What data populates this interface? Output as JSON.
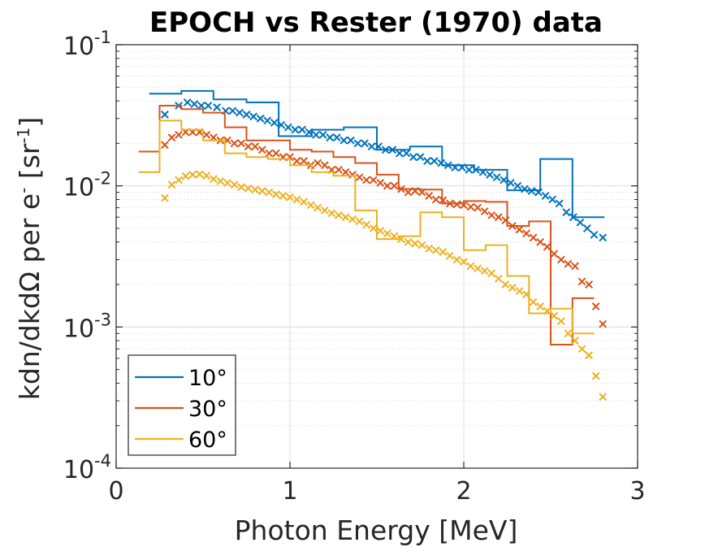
{
  "chart_data": {
    "type": "line",
    "title": "EPOCH vs Rester (1970) data",
    "xlabel": "Photon Energy [MeV]",
    "ylabel": {
      "prefix": "kdn/dkdΩ per e",
      "sup1": "-",
      "mid": " [sr",
      "sup2": "-1",
      "suffix": "]"
    },
    "xlim": [
      0,
      3
    ],
    "ylim": [
      0.0001,
      0.1
    ],
    "yscale": "log",
    "grid": true,
    "legend_position": "bottom-left",
    "xticks": [
      "0",
      "1",
      "2",
      "3"
    ],
    "yticks": [
      {
        "base": "10",
        "exp": "-4"
      },
      {
        "base": "10",
        "exp": "-3"
      },
      {
        "base": "10",
        "exp": "-2"
      },
      {
        "base": "10",
        "exp": "-1"
      }
    ],
    "series": [
      {
        "name": "10°",
        "color": "#0072BD",
        "histogram_edges": [
          0.19,
          0.375,
          0.56,
          0.75,
          0.935,
          1.125,
          1.31,
          1.5,
          1.69,
          1.875,
          2.06,
          2.25,
          2.44,
          2.625,
          2.81
        ],
        "histogram_values": [
          0.045,
          0.047,
          0.041,
          0.039,
          0.0225,
          0.025,
          0.026,
          0.018,
          0.019,
          0.014,
          0.013,
          0.0093,
          0.0155,
          0.006
        ],
        "x": [
          0.28,
          0.36,
          0.41,
          0.45,
          0.49,
          0.53,
          0.58,
          0.63,
          0.67,
          0.71,
          0.75,
          0.79,
          0.83,
          0.87,
          0.91,
          0.95,
          0.99,
          1.03,
          1.07,
          1.11,
          1.15,
          1.19,
          1.23,
          1.27,
          1.31,
          1.35,
          1.39,
          1.43,
          1.47,
          1.51,
          1.55,
          1.59,
          1.63,
          1.67,
          1.71,
          1.75,
          1.79,
          1.83,
          1.87,
          1.91,
          1.95,
          1.99,
          2.03,
          2.07,
          2.11,
          2.15,
          2.19,
          2.23,
          2.27,
          2.31,
          2.35,
          2.39,
          2.43,
          2.47,
          2.51,
          2.55,
          2.59,
          2.63,
          2.67,
          2.71,
          2.75,
          2.8
        ],
        "y": [
          0.032,
          0.037,
          0.039,
          0.038,
          0.037,
          0.037,
          0.036,
          0.034,
          0.034,
          0.033,
          0.032,
          0.031,
          0.03,
          0.029,
          0.028,
          0.027,
          0.026,
          0.025,
          0.025,
          0.024,
          0.023,
          0.023,
          0.022,
          0.022,
          0.021,
          0.021,
          0.02,
          0.02,
          0.019,
          0.019,
          0.018,
          0.018,
          0.017,
          0.017,
          0.016,
          0.016,
          0.015,
          0.015,
          0.0145,
          0.014,
          0.0135,
          0.0135,
          0.013,
          0.013,
          0.0125,
          0.012,
          0.0115,
          0.011,
          0.0105,
          0.01,
          0.0095,
          0.0092,
          0.009,
          0.0085,
          0.008,
          0.0075,
          0.0065,
          0.006,
          0.0055,
          0.005,
          0.0045,
          0.0043
        ]
      },
      {
        "name": "30°",
        "color": "#D95319",
        "histogram_edges": [
          0.13,
          0.25,
          0.375,
          0.5,
          0.625,
          0.75,
          0.875,
          1.0,
          1.125,
          1.25,
          1.375,
          1.5,
          1.625,
          1.75,
          1.875,
          2.0,
          2.125,
          2.25,
          2.375,
          2.5,
          2.625,
          2.75
        ],
        "histogram_values": [
          0.0175,
          0.037,
          0.035,
          0.033,
          0.026,
          0.021,
          0.021,
          0.018,
          0.0175,
          0.016,
          0.0145,
          0.012,
          0.0095,
          0.0094,
          0.0075,
          0.0078,
          0.0077,
          0.0052,
          0.0056,
          0.00075,
          0.0016
        ],
        "x": [
          0.28,
          0.32,
          0.36,
          0.4,
          0.44,
          0.48,
          0.52,
          0.56,
          0.6,
          0.64,
          0.68,
          0.72,
          0.76,
          0.8,
          0.84,
          0.88,
          0.92,
          0.96,
          1.0,
          1.04,
          1.08,
          1.12,
          1.16,
          1.2,
          1.24,
          1.28,
          1.32,
          1.36,
          1.4,
          1.44,
          1.48,
          1.52,
          1.56,
          1.6,
          1.64,
          1.68,
          1.72,
          1.76,
          1.8,
          1.84,
          1.88,
          1.92,
          1.96,
          2.0,
          2.04,
          2.08,
          2.12,
          2.16,
          2.2,
          2.24,
          2.28,
          2.32,
          2.36,
          2.4,
          2.44,
          2.48,
          2.52,
          2.56,
          2.6,
          2.64,
          2.68,
          2.72,
          2.76,
          2.8
        ],
        "y": [
          0.0195,
          0.022,
          0.023,
          0.024,
          0.024,
          0.024,
          0.023,
          0.022,
          0.021,
          0.021,
          0.02,
          0.02,
          0.019,
          0.019,
          0.018,
          0.017,
          0.017,
          0.016,
          0.016,
          0.015,
          0.015,
          0.014,
          0.0145,
          0.014,
          0.013,
          0.013,
          0.0125,
          0.012,
          0.0115,
          0.011,
          0.011,
          0.0105,
          0.01,
          0.01,
          0.0095,
          0.009,
          0.0092,
          0.009,
          0.0085,
          0.008,
          0.0079,
          0.0075,
          0.0074,
          0.0073,
          0.0071,
          0.007,
          0.0066,
          0.0062,
          0.006,
          0.0057,
          0.0052,
          0.0049,
          0.0046,
          0.0043,
          0.004,
          0.0037,
          0.0033,
          0.003,
          0.0028,
          0.0027,
          0.0021,
          0.002,
          0.0014,
          0.00105
        ]
      },
      {
        "name": "60°",
        "color": "#EDB120",
        "histogram_edges": [
          0.13,
          0.25,
          0.375,
          0.5,
          0.625,
          0.75,
          0.875,
          1.0,
          1.125,
          1.25,
          1.375,
          1.5,
          1.625,
          1.75,
          1.875,
          2.0,
          2.125,
          2.25,
          2.375,
          2.5,
          2.625,
          2.75
        ],
        "histogram_values": [
          0.0125,
          0.029,
          0.025,
          0.021,
          0.017,
          0.016,
          0.0155,
          0.014,
          0.0125,
          0.0118,
          0.0067,
          0.0042,
          0.0044,
          0.0065,
          0.006,
          0.0035,
          0.0038,
          0.0023,
          0.00125,
          0.00135,
          0.0009
        ],
        "x": [
          0.28,
          0.32,
          0.36,
          0.4,
          0.44,
          0.48,
          0.52,
          0.56,
          0.6,
          0.64,
          0.68,
          0.72,
          0.76,
          0.8,
          0.84,
          0.88,
          0.92,
          0.96,
          1.0,
          1.04,
          1.08,
          1.12,
          1.16,
          1.2,
          1.24,
          1.28,
          1.32,
          1.36,
          1.4,
          1.44,
          1.48,
          1.52,
          1.56,
          1.6,
          1.64,
          1.68,
          1.72,
          1.76,
          1.8,
          1.84,
          1.88,
          1.92,
          1.96,
          2.0,
          2.04,
          2.08,
          2.12,
          2.16,
          2.2,
          2.24,
          2.28,
          2.32,
          2.36,
          2.4,
          2.44,
          2.48,
          2.52,
          2.56,
          2.6,
          2.64,
          2.68,
          2.72,
          2.76,
          2.8
        ],
        "y": [
          0.0082,
          0.0102,
          0.011,
          0.0117,
          0.012,
          0.0121,
          0.0118,
          0.0112,
          0.0108,
          0.0105,
          0.0102,
          0.0098,
          0.0096,
          0.0094,
          0.0092,
          0.009,
          0.0087,
          0.0085,
          0.0083,
          0.008,
          0.0077,
          0.0073,
          0.007,
          0.0067,
          0.0064,
          0.0062,
          0.006,
          0.0058,
          0.0056,
          0.0053,
          0.005,
          0.0048,
          0.0046,
          0.0044,
          0.0042,
          0.004,
          0.0039,
          0.0038,
          0.0036,
          0.0035,
          0.0034,
          0.0032,
          0.003,
          0.0029,
          0.0027,
          0.0026,
          0.0025,
          0.0024,
          0.0022,
          0.002,
          0.0019,
          0.0018,
          0.0017,
          0.0015,
          0.0014,
          0.0013,
          0.0012,
          0.0011,
          0.0009,
          0.0008,
          0.0007,
          0.00063,
          0.00045,
          0.00032
        ]
      }
    ]
  }
}
